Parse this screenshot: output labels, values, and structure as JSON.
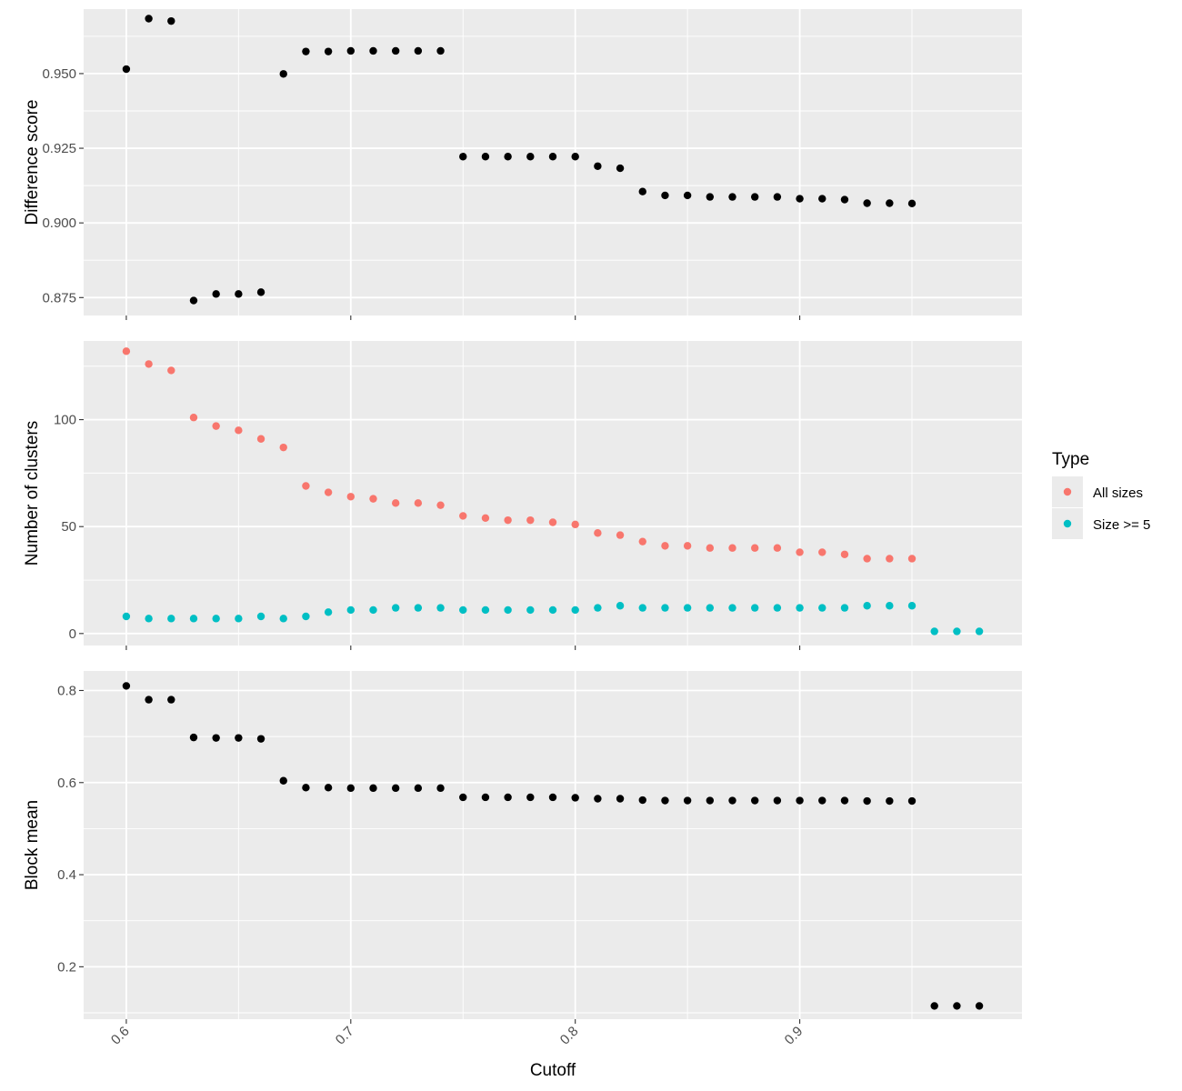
{
  "chart_data": {
    "type": "scatter",
    "xlabel": "Cutoff",
    "xlim": [
      0.581,
      0.999
    ],
    "x_ticks": [
      "0.6",
      "0.7",
      "0.8",
      "0.9"
    ],
    "x_tick_values": [
      0.6,
      0.7,
      0.8,
      0.9
    ],
    "colors": {
      "All sizes": "#F8766D",
      "Size >= 5": "#00BFC4",
      "default": "#000000"
    },
    "legend": {
      "title": "Type",
      "position": "right",
      "entries": [
        "All sizes",
        "Size >= 5"
      ]
    },
    "panels": [
      {
        "ylabel": "Difference score",
        "ylim": [
          0.869,
          0.9716
        ],
        "y_ticks": [
          "0.875",
          "0.900",
          "0.925",
          "0.950"
        ],
        "y_tick_values": [
          0.875,
          0.9,
          0.925,
          0.95
        ],
        "y_minor": [
          0.8875,
          0.9125,
          0.9375,
          0.9625
        ],
        "series": [
          {
            "name": "",
            "x": [
              0.6,
              0.61,
              0.62,
              0.63,
              0.64,
              0.65,
              0.66,
              0.67,
              0.68,
              0.69,
              0.7,
              0.71,
              0.72,
              0.73,
              0.74,
              0.75,
              0.76,
              0.77,
              0.78,
              0.79,
              0.8,
              0.81,
              0.82,
              0.83,
              0.84,
              0.85,
              0.86,
              0.87,
              0.88,
              0.89,
              0.9,
              0.91,
              0.92,
              0.93,
              0.94,
              0.95
            ],
            "y": [
              0.9515,
              0.9684,
              0.9676,
              0.874,
              0.8762,
              0.8762,
              0.8768,
              0.9499,
              0.9574,
              0.9574,
              0.9576,
              0.9576,
              0.9576,
              0.9576,
              0.9576,
              0.9222,
              0.9222,
              0.9222,
              0.9222,
              0.9222,
              0.9222,
              0.919,
              0.9183,
              0.9105,
              0.9092,
              0.9092,
              0.9087,
              0.9087,
              0.9087,
              0.9087,
              0.9081,
              0.9081,
              0.9078,
              0.9066,
              0.9066,
              0.9065
            ]
          }
        ]
      },
      {
        "ylabel": "Number of clusters",
        "ylim": [
          -5.6,
          136.8
        ],
        "y_ticks": [
          "0",
          "50",
          "100"
        ],
        "y_tick_values": [
          0,
          50,
          100
        ],
        "y_minor": [
          25,
          75,
          125
        ],
        "series": [
          {
            "name": "All sizes",
            "x": [
              0.6,
              0.61,
              0.62,
              0.63,
              0.64,
              0.65,
              0.66,
              0.67,
              0.68,
              0.69,
              0.7,
              0.71,
              0.72,
              0.73,
              0.74,
              0.75,
              0.76,
              0.77,
              0.78,
              0.79,
              0.8,
              0.81,
              0.82,
              0.83,
              0.84,
              0.85,
              0.86,
              0.87,
              0.88,
              0.89,
              0.9,
              0.91,
              0.92,
              0.93,
              0.94,
              0.95
            ],
            "y": [
              132,
              126,
              123,
              101,
              97,
              95,
              91,
              87,
              69,
              66,
              64,
              63,
              61,
              61,
              60,
              55,
              54,
              53,
              53,
              52,
              51,
              47,
              46,
              43,
              41,
              41,
              40,
              40,
              40,
              40,
              38,
              38,
              37,
              35,
              35,
              35
            ]
          },
          {
            "name": "Size >= 5",
            "x": [
              0.6,
              0.61,
              0.62,
              0.63,
              0.64,
              0.65,
              0.66,
              0.67,
              0.68,
              0.69,
              0.7,
              0.71,
              0.72,
              0.73,
              0.74,
              0.75,
              0.76,
              0.77,
              0.78,
              0.79,
              0.8,
              0.81,
              0.82,
              0.83,
              0.84,
              0.85,
              0.86,
              0.87,
              0.88,
              0.89,
              0.9,
              0.91,
              0.92,
              0.93,
              0.94,
              0.95,
              0.96,
              0.97,
              0.98
            ],
            "y": [
              8,
              7,
              7,
              7,
              7,
              7,
              8,
              7,
              8,
              10,
              11,
              11,
              12,
              12,
              12,
              11,
              11,
              11,
              11,
              11,
              11,
              12,
              13,
              12,
              12,
              12,
              12,
              12,
              12,
              12,
              12,
              12,
              12,
              13,
              13,
              13,
              1,
              1,
              1
            ]
          }
        ]
      },
      {
        "ylabel": "Block mean",
        "ylim": [
          0.0862,
          0.8424
        ],
        "y_ticks": [
          "0.2",
          "0.4",
          "0.6",
          "0.8"
        ],
        "y_tick_values": [
          0.2,
          0.4,
          0.6,
          0.8
        ],
        "y_minor": [
          0.1,
          0.3,
          0.5,
          0.7
        ],
        "series": [
          {
            "name": "",
            "x": [
              0.6,
              0.61,
              0.62,
              0.63,
              0.64,
              0.65,
              0.66,
              0.67,
              0.68,
              0.69,
              0.7,
              0.71,
              0.72,
              0.73,
              0.74,
              0.75,
              0.76,
              0.77,
              0.78,
              0.79,
              0.8,
              0.81,
              0.82,
              0.83,
              0.84,
              0.85,
              0.86,
              0.87,
              0.88,
              0.89,
              0.9,
              0.91,
              0.92,
              0.93,
              0.94,
              0.95,
              0.96,
              0.97,
              0.98
            ],
            "y": [
              0.81,
              0.78,
              0.78,
              0.698,
              0.697,
              0.697,
              0.695,
              0.604,
              0.589,
              0.589,
              0.588,
              0.588,
              0.588,
              0.588,
              0.588,
              0.568,
              0.568,
              0.568,
              0.568,
              0.568,
              0.567,
              0.565,
              0.565,
              0.562,
              0.561,
              0.561,
              0.561,
              0.561,
              0.561,
              0.561,
              0.561,
              0.561,
              0.561,
              0.56,
              0.56,
              0.56,
              0.115,
              0.115,
              0.115
            ]
          }
        ]
      }
    ]
  }
}
